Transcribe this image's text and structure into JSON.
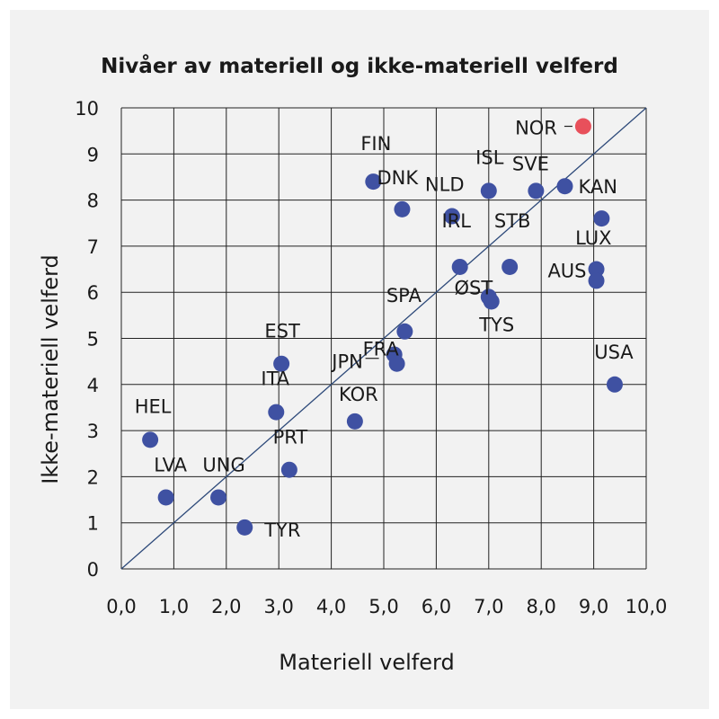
{
  "chart_data": {
    "type": "scatter",
    "title": "Nivåer av materiell og ikke-materiell velferd",
    "xlabel": "Materiell velferd",
    "ylabel": "Ikke-materiell velferd",
    "xlim": [
      0,
      10
    ],
    "ylim": [
      0,
      10
    ],
    "x_ticks": [
      "0,0",
      "1,0",
      "2,0",
      "3,0",
      "4,0",
      "5,0",
      "6,0",
      "7,0",
      "8,0",
      "9,0",
      "10,0"
    ],
    "y_ticks": [
      "0",
      "1",
      "2",
      "3",
      "4",
      "5",
      "6",
      "7",
      "8",
      "9",
      "10"
    ],
    "grid": true,
    "reference_line": "diagonal y = x",
    "colors": {
      "point": "#3f51a2",
      "highlight": "#e8505b",
      "line": "#2e4a7a",
      "grid": "#222222",
      "background": "#f2f2f2"
    },
    "points": [
      {
        "label": "NOR",
        "x": 8.8,
        "y": 9.6,
        "highlight": true
      },
      {
        "label": "KAN",
        "x": 8.45,
        "y": 8.3
      },
      {
        "label": "SVE",
        "x": 7.9,
        "y": 8.2
      },
      {
        "label": "ISL",
        "x": 7.0,
        "y": 8.2
      },
      {
        "label": "FIN",
        "x": 4.8,
        "y": 8.4
      },
      {
        "label": "DNK",
        "x": 5.35,
        "y": 7.8
      },
      {
        "label": "NLD",
        "x": 6.3,
        "y": 7.65
      },
      {
        "label": "LUX",
        "x": 9.15,
        "y": 7.6
      },
      {
        "label": "IRL",
        "x": 6.45,
        "y": 6.55
      },
      {
        "label": "STB",
        "x": 7.4,
        "y": 6.55
      },
      {
        "label": "AUS",
        "x": 9.05,
        "y": 6.5
      },
      {
        "label": "",
        "x": 9.05,
        "y": 6.25
      },
      {
        "label": "ØST",
        "x": 7.0,
        "y": 5.9
      },
      {
        "label": "TYS",
        "x": 7.05,
        "y": 5.8
      },
      {
        "label": "SPA",
        "x": 5.4,
        "y": 5.15
      },
      {
        "label": "FRA",
        "x": 5.2,
        "y": 4.65
      },
      {
        "label": "JPN",
        "x": 5.25,
        "y": 4.45
      },
      {
        "label": "USA",
        "x": 9.4,
        "y": 4.0
      },
      {
        "label": "EST",
        "x": 3.05,
        "y": 4.45
      },
      {
        "label": "ITA",
        "x": 2.95,
        "y": 3.4
      },
      {
        "label": "KOR",
        "x": 4.45,
        "y": 3.2
      },
      {
        "label": "HEL",
        "x": 0.55,
        "y": 2.8
      },
      {
        "label": "PRT",
        "x": 3.2,
        "y": 2.15
      },
      {
        "label": "LVA",
        "x": 0.85,
        "y": 1.55
      },
      {
        "label": "UNG",
        "x": 1.85,
        "y": 1.55
      },
      {
        "label": "TYR",
        "x": 2.35,
        "y": 0.9
      }
    ]
  }
}
